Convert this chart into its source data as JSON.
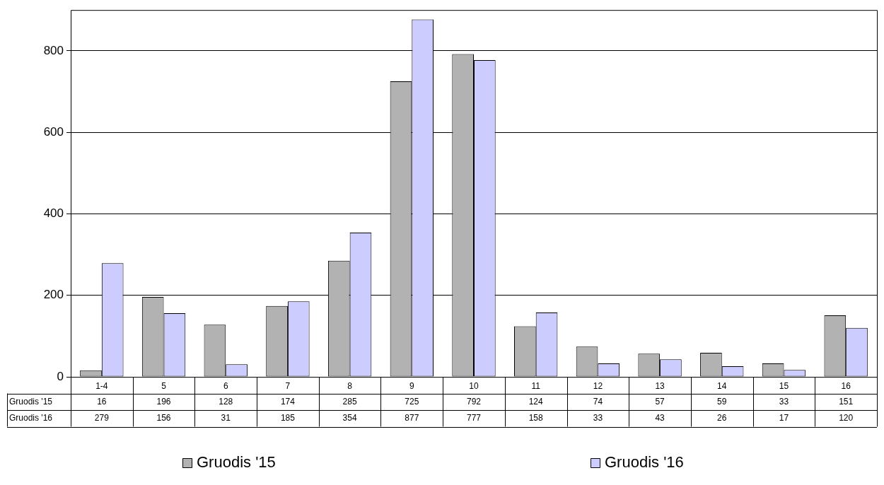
{
  "chart_data": {
    "type": "bar",
    "categories": [
      "1-4",
      "5",
      "6",
      "7",
      "8",
      "9",
      "10",
      "11",
      "12",
      "13",
      "14",
      "15",
      "16"
    ],
    "series": [
      {
        "name": "Gruodis '15",
        "color": "#b2b2b2",
        "values": [
          16,
          196,
          128,
          174,
          285,
          725,
          792,
          124,
          74,
          57,
          59,
          33,
          151
        ]
      },
      {
        "name": "Gruodis '16",
        "color": "#ccccff",
        "values": [
          279,
          156,
          31,
          185,
          354,
          877,
          777,
          158,
          33,
          43,
          26,
          17,
          120
        ]
      }
    ],
    "ylim": [
      0,
      900
    ],
    "yticks": [
      0,
      200,
      400,
      600,
      800
    ],
    "grid": "y",
    "legend": "bottom",
    "data_labels": true
  }
}
